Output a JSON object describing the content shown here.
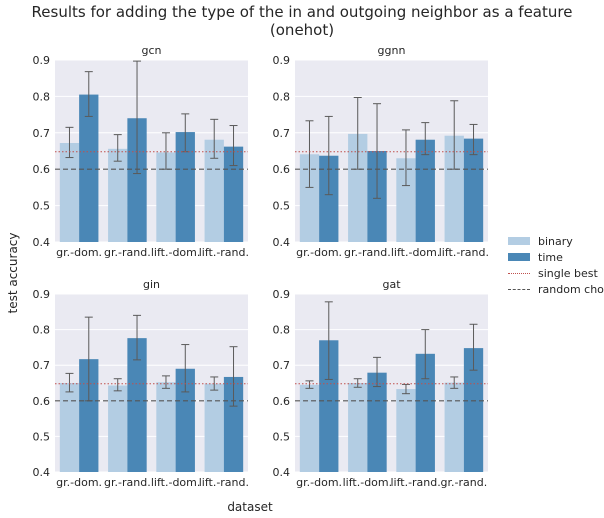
{
  "title": "Results for adding the type of the in and outgoing neighbor as a feature (onehot)",
  "xlabel": "dataset",
  "ylabel": "test accuracy",
  "legend": {
    "binary": "binary",
    "time": "time",
    "single_best": "single best",
    "random_choice": "random choice"
  },
  "colors": {
    "binary": "#b3cde3",
    "time": "#4a87b6",
    "single_best": "#c0504d",
    "random_choice": "#555555",
    "panel_bg": "#eaeaf2",
    "error_bar": "#5a5a5a"
  },
  "chart_data": [
    {
      "type": "bar",
      "title": "gcn",
      "categories": [
        "gr.-dom.",
        "gr.-rand.",
        "lift.-dom.",
        "lift.-rand."
      ],
      "series": [
        {
          "name": "binary",
          "values": [
            0.672,
            0.656,
            0.646,
            0.681
          ],
          "err_low": [
            0.632,
            0.622,
            0.6,
            0.63
          ],
          "err_high": [
            0.715,
            0.695,
            0.7,
            0.737
          ]
        },
        {
          "name": "time",
          "values": [
            0.805,
            0.74,
            0.702,
            0.662
          ],
          "err_low": [
            0.745,
            0.588,
            0.648,
            0.61
          ],
          "err_high": [
            0.868,
            0.897,
            0.752,
            0.72
          ]
        }
      ],
      "ylim": [
        0.4,
        0.9
      ],
      "yticks": [
        0.4,
        0.5,
        0.6,
        0.7,
        0.8,
        0.9
      ],
      "single_best": 0.648,
      "random_choice": 0.6
    },
    {
      "type": "bar",
      "title": "ggnn",
      "categories": [
        "gr.-dom.",
        "gr.-rand.",
        "lift.-dom.",
        "lift.-rand."
      ],
      "series": [
        {
          "name": "binary",
          "values": [
            0.641,
            0.697,
            0.63,
            0.692
          ],
          "err_low": [
            0.55,
            0.6,
            0.555,
            0.6
          ],
          "err_high": [
            0.733,
            0.797,
            0.708,
            0.788
          ]
        },
        {
          "name": "time",
          "values": [
            0.637,
            0.65,
            0.681,
            0.684
          ],
          "err_low": [
            0.53,
            0.52,
            0.64,
            0.64
          ],
          "err_high": [
            0.745,
            0.78,
            0.728,
            0.723
          ]
        }
      ],
      "ylim": [
        0.4,
        0.9
      ],
      "yticks": [
        0.4,
        0.5,
        0.6,
        0.7,
        0.8,
        0.9
      ],
      "single_best": 0.648,
      "random_choice": 0.6
    },
    {
      "type": "bar",
      "title": "gin",
      "categories": [
        "gr.-dom.",
        "gr.-rand.",
        "lift.-dom.",
        "lift.-rand."
      ],
      "series": [
        {
          "name": "binary",
          "values": [
            0.65,
            0.643,
            0.652,
            0.648
          ],
          "err_low": [
            0.625,
            0.628,
            0.635,
            0.63
          ],
          "err_high": [
            0.677,
            0.662,
            0.67,
            0.667
          ]
        },
        {
          "name": "time",
          "values": [
            0.717,
            0.776,
            0.69,
            0.667
          ],
          "err_low": [
            0.6,
            0.715,
            0.625,
            0.585
          ],
          "err_high": [
            0.835,
            0.84,
            0.758,
            0.752
          ]
        }
      ],
      "ylim": [
        0.4,
        0.9
      ],
      "yticks": [
        0.4,
        0.5,
        0.6,
        0.7,
        0.8,
        0.9
      ],
      "single_best": 0.648,
      "random_choice": 0.6
    },
    {
      "type": "bar",
      "title": "gat",
      "categories": [
        "gr.-dom.",
        "lift.-dom.",
        "lift.-rand.",
        "gr.-rand."
      ],
      "series": [
        {
          "name": "binary",
          "values": [
            0.645,
            0.65,
            0.633,
            0.651
          ],
          "err_low": [
            0.635,
            0.638,
            0.62,
            0.635
          ],
          "err_high": [
            0.656,
            0.662,
            0.646,
            0.667
          ]
        },
        {
          "name": "time",
          "values": [
            0.77,
            0.679,
            0.732,
            0.748
          ],
          "err_low": [
            0.66,
            0.64,
            0.662,
            0.686
          ],
          "err_high": [
            0.878,
            0.722,
            0.8,
            0.815
          ]
        }
      ],
      "ylim": [
        0.4,
        0.9
      ],
      "yticks": [
        0.4,
        0.5,
        0.6,
        0.7,
        0.8,
        0.9
      ],
      "single_best": 0.648,
      "random_choice": 0.6
    }
  ]
}
